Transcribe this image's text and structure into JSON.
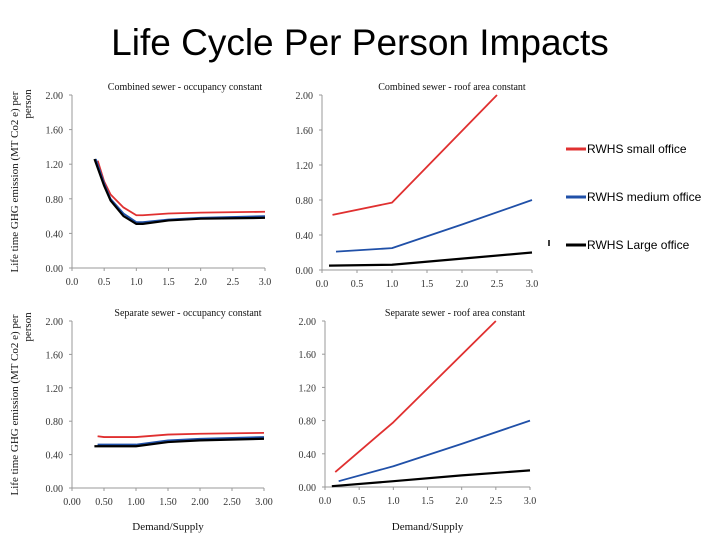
{
  "title": "Life Cycle Per Person Impacts",
  "legend": [
    {
      "label": "RWHS small office",
      "color": "#e03030"
    },
    {
      "label": "RWHS medium office",
      "color": "#2050a8"
    },
    {
      "label": "RWHS Large office",
      "color": "#000000"
    }
  ],
  "chart_data": [
    {
      "type": "line",
      "title": "Combined sewer - occupancy constant",
      "ylabel": "Life time GHG emission (MT Co2 e) per person",
      "xlabel": "",
      "xlim": [
        0,
        3
      ],
      "ylim": [
        0,
        2
      ],
      "xticks": [
        "0.0",
        "0.5",
        "1.0",
        "1.5",
        "2.0",
        "2.5",
        "3.0"
      ],
      "yticks": [
        "0.00",
        "0.40",
        "0.80",
        "1.20",
        "1.60",
        "2.00"
      ],
      "series": [
        {
          "name": "RWHS small office",
          "x": [
            0.4,
            0.5,
            0.6,
            0.8,
            1.0,
            1.1,
            1.5,
            2.0,
            3.0
          ],
          "y": [
            1.24,
            1.0,
            0.85,
            0.7,
            0.61,
            0.61,
            0.63,
            0.64,
            0.65
          ]
        },
        {
          "name": "RWHS medium office",
          "x": [
            0.37,
            0.5,
            0.6,
            0.8,
            1.0,
            1.1,
            1.5,
            2.0,
            3.0
          ],
          "y": [
            1.26,
            0.98,
            0.8,
            0.63,
            0.53,
            0.53,
            0.56,
            0.58,
            0.6
          ]
        },
        {
          "name": "RWHS Large office",
          "x": [
            0.35,
            0.5,
            0.6,
            0.8,
            1.0,
            1.1,
            1.5,
            2.0,
            3.0
          ],
          "y": [
            1.26,
            0.95,
            0.78,
            0.6,
            0.51,
            0.51,
            0.55,
            0.57,
            0.58
          ]
        }
      ]
    },
    {
      "type": "line",
      "title": "Combined sewer - roof area constant",
      "ylabel": "",
      "xlabel": "",
      "xlim": [
        0,
        3
      ],
      "ylim": [
        0,
        2
      ],
      "xticks": [
        "0.0",
        "0.5",
        "1.0",
        "1.5",
        "2.0",
        "2.5",
        "3.0"
      ],
      "yticks": [
        "0.00",
        "0.40",
        "0.80",
        "1.20",
        "1.60",
        "2.00"
      ],
      "series": [
        {
          "name": "RWHS small office",
          "x": [
            0.15,
            1.0,
            2.5
          ],
          "y": [
            0.63,
            0.77,
            2.0
          ]
        },
        {
          "name": "RWHS medium office",
          "x": [
            0.2,
            1.0,
            2.0,
            3.0
          ],
          "y": [
            0.21,
            0.25,
            0.52,
            0.8
          ]
        },
        {
          "name": "RWHS Large office",
          "x": [
            0.1,
            1.0,
            2.0,
            3.0
          ],
          "y": [
            0.05,
            0.06,
            0.13,
            0.2
          ]
        }
      ]
    },
    {
      "type": "line",
      "title": "Separate sewer - occupancy  constant",
      "ylabel": "Life time GHG emission (MT Co2 e) per person",
      "xlabel": "Demand/Supply",
      "xlim": [
        0,
        3
      ],
      "ylim": [
        0,
        2
      ],
      "xticks": [
        "0.00",
        "0.50",
        "1.00",
        "1.50",
        "2.00",
        "2.50",
        "3.00"
      ],
      "yticks": [
        "0.00",
        "0.40",
        "0.80",
        "1.20",
        "1.60",
        "2.00"
      ],
      "series": [
        {
          "name": "RWHS small office",
          "x": [
            0.4,
            0.5,
            1.0,
            1.5,
            2.0,
            3.0
          ],
          "y": [
            0.62,
            0.61,
            0.61,
            0.64,
            0.65,
            0.66
          ]
        },
        {
          "name": "RWHS medium office",
          "x": [
            0.4,
            1.0,
            1.5,
            2.0,
            3.0
          ],
          "y": [
            0.52,
            0.52,
            0.57,
            0.59,
            0.61
          ]
        },
        {
          "name": "RWHS Large office",
          "x": [
            0.35,
            1.0,
            1.5,
            2.0,
            3.0
          ],
          "y": [
            0.5,
            0.5,
            0.55,
            0.57,
            0.59
          ]
        }
      ]
    },
    {
      "type": "line",
      "title": "Separate sewer - roof area  constant",
      "ylabel": "",
      "xlabel": "Demand/Supply",
      "xlim": [
        0,
        3
      ],
      "ylim": [
        0,
        2
      ],
      "xticks": [
        "0.0",
        "0.5",
        "1.0",
        "1.5",
        "2.0",
        "2.5",
        "3.0"
      ],
      "yticks": [
        "0.00",
        "0.40",
        "0.80",
        "1.20",
        "1.60",
        "2.00"
      ],
      "series": [
        {
          "name": "RWHS small office",
          "x": [
            0.15,
            1.0,
            2.5
          ],
          "y": [
            0.18,
            0.78,
            2.0
          ]
        },
        {
          "name": "RWHS medium office",
          "x": [
            0.2,
            1.0,
            2.0,
            3.0
          ],
          "y": [
            0.07,
            0.25,
            0.52,
            0.8
          ]
        },
        {
          "name": "RWHS Large office",
          "x": [
            0.1,
            1.0,
            2.0,
            3.0
          ],
          "y": [
            0.01,
            0.07,
            0.14,
            0.2
          ]
        }
      ]
    }
  ]
}
